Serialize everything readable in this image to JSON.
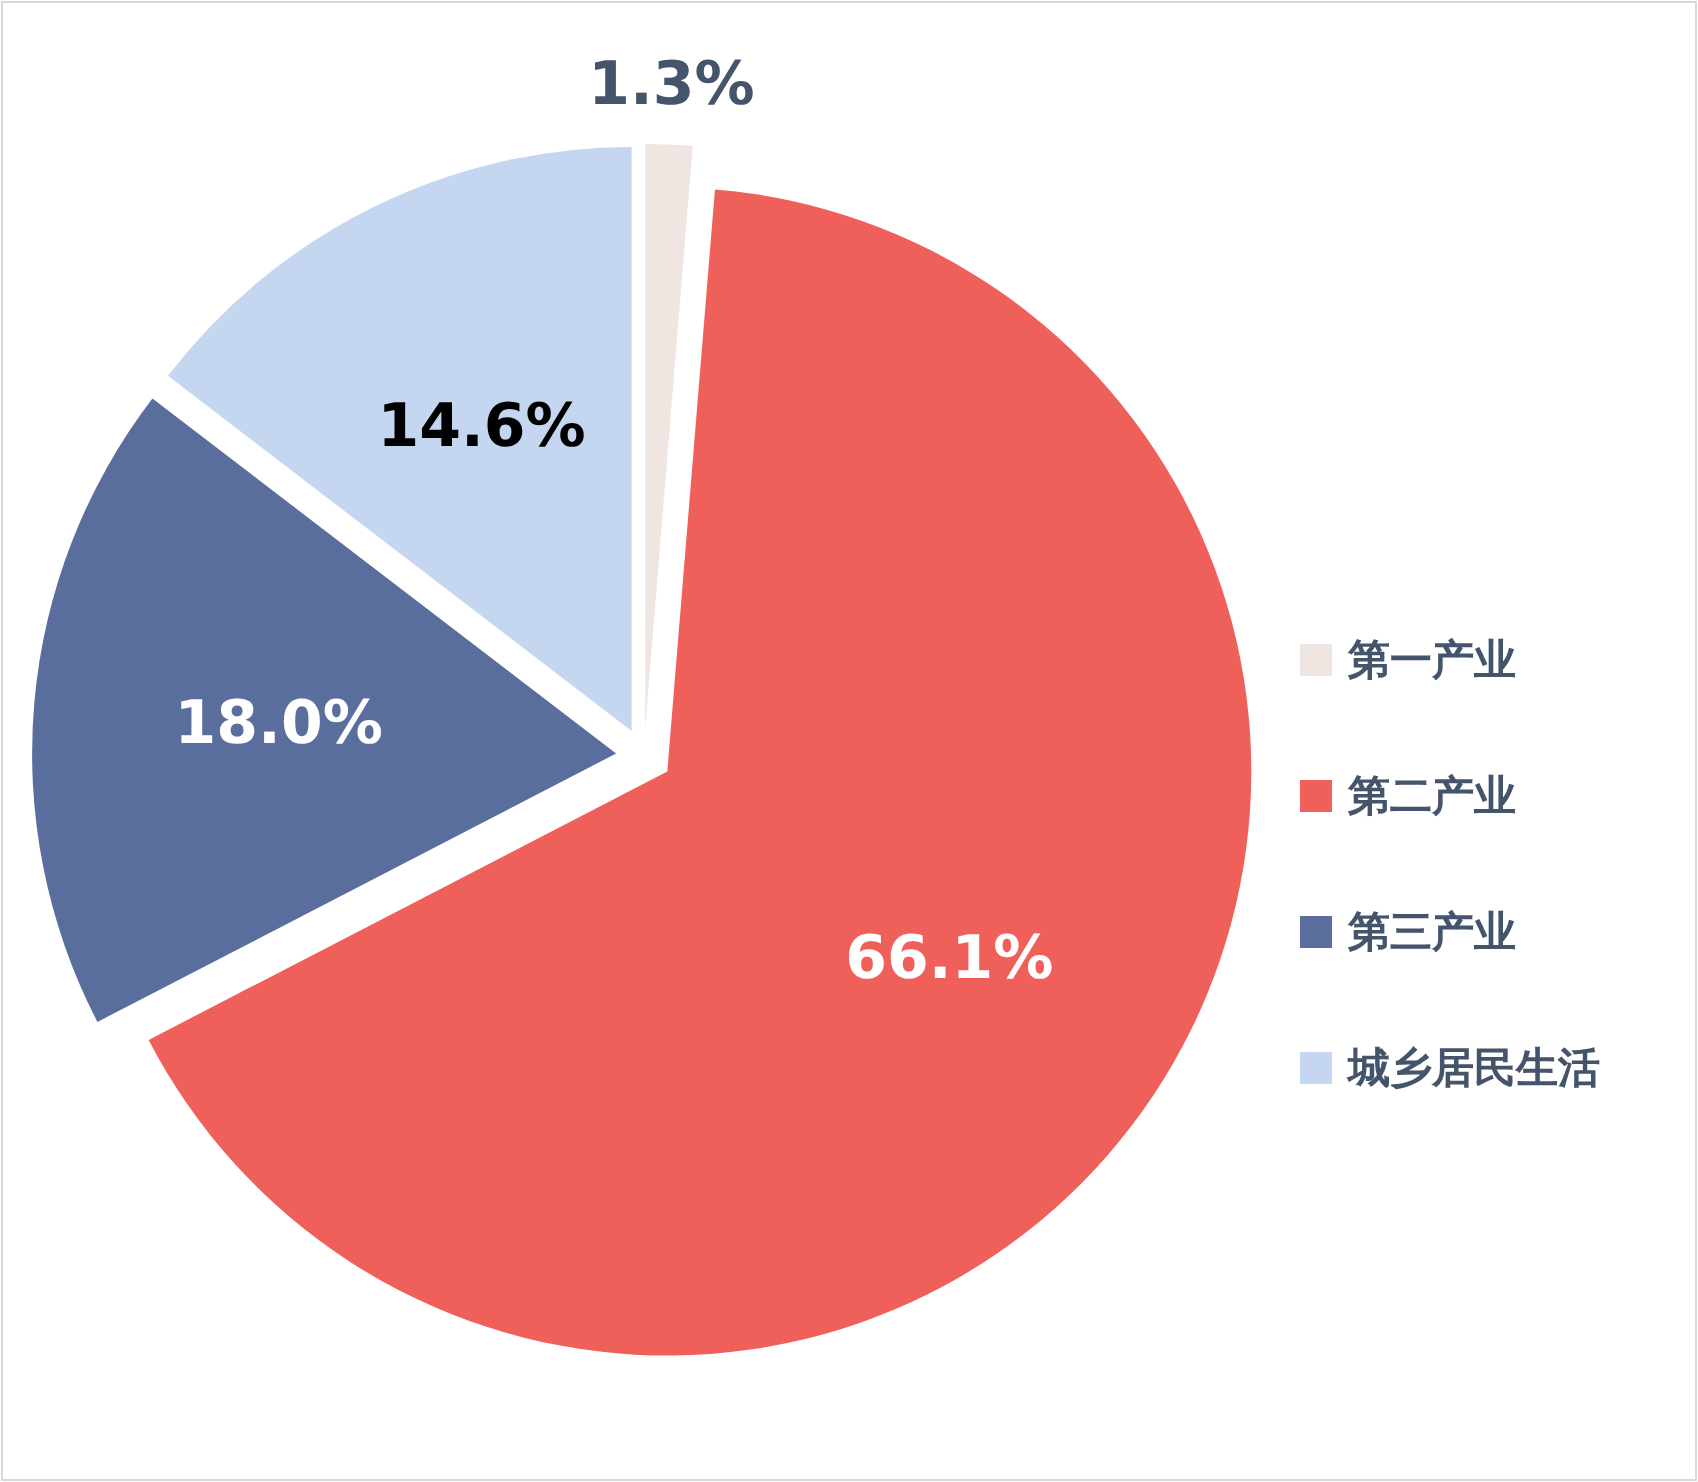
{
  "chart_data": {
    "type": "pie",
    "categories": [
      "第一产业",
      "第二产业",
      "第三产业",
      "城乡居民生活"
    ],
    "values": [
      1.3,
      66.1,
      18.0,
      14.6
    ],
    "colors": [
      "#efe6e2",
      "#f0605a",
      "#5a6e9e",
      "#c5d7f0"
    ],
    "value_labels": [
      "1.3%",
      "66.1%",
      "18.0%",
      "14.6%"
    ],
    "legend": "right"
  }
}
